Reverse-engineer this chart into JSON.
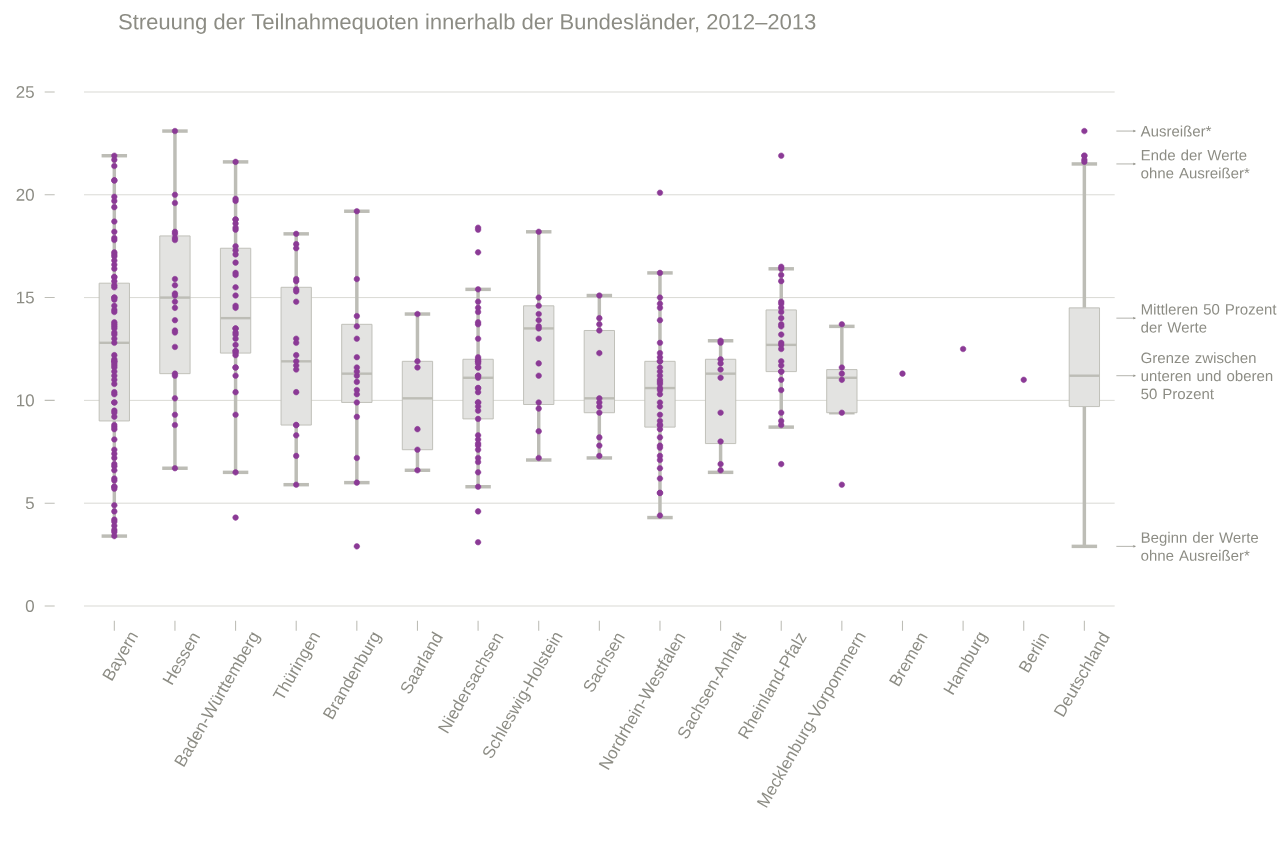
{
  "chart_data": {
    "type": "box",
    "title": "Streuung der Teilnahmequoten innerhalb der Bundesländer, 2012–2013",
    "categories": [
      "Bayern",
      "Hessen",
      "Baden-Württemberg",
      "Thüringen",
      "Brandenburg",
      "Saarland",
      "Niedersachsen",
      "Schleswig-Holstein",
      "Sachsen",
      "Nordrhein-Westfalen",
      "Sachsen-Anhalt",
      "Rheinland-Pfalz",
      "Mecklenburg-Vorpommern",
      "Bremen",
      "Hamburg",
      "Berlin",
      "Deutschland"
    ],
    "color": "#e3e3e1",
    "boxes": [
      {
        "low": 3.4,
        "q1": 9.0,
        "median": 12.8,
        "q3": 15.7,
        "high": 21.9
      },
      {
        "low": 6.7,
        "q1": 11.3,
        "median": 15.0,
        "q3": 18.0,
        "high": 23.1
      },
      {
        "low": 6.5,
        "q1": 12.3,
        "median": 14.0,
        "q3": 17.4,
        "high": 21.6
      },
      {
        "low": 5.9,
        "q1": 8.8,
        "median": 11.9,
        "q3": 15.5,
        "high": 18.1
      },
      {
        "low": 6.0,
        "q1": 9.9,
        "median": 11.3,
        "q3": 13.7,
        "high": 19.2
      },
      {
        "low": 6.6,
        "q1": 7.6,
        "median": 10.1,
        "q3": 11.9,
        "high": 14.2
      },
      {
        "low": 5.8,
        "q1": 9.1,
        "median": 11.1,
        "q3": 12.0,
        "high": 15.4
      },
      {
        "low": 7.1,
        "q1": 9.8,
        "median": 13.5,
        "q3": 14.6,
        "high": 18.2
      },
      {
        "low": 7.2,
        "q1": 9.4,
        "median": 10.1,
        "q3": 13.4,
        "high": 15.1
      },
      {
        "low": 4.3,
        "q1": 8.7,
        "median": 10.6,
        "q3": 11.9,
        "high": 16.2
      },
      {
        "low": 6.5,
        "q1": 7.9,
        "median": 11.3,
        "q3": 12.0,
        "high": 12.9
      },
      {
        "low": 8.7,
        "q1": 11.4,
        "median": 12.7,
        "q3": 14.4,
        "high": 16.4
      },
      {
        "low": 9.4,
        "q1": 9.4,
        "median": 11.1,
        "q3": 11.5,
        "high": 13.6
      },
      null,
      null,
      null,
      {
        "low": 2.9,
        "q1": 9.7,
        "median": 11.2,
        "q3": 14.5,
        "high": 21.5
      }
    ],
    "series": [
      {
        "type": "scatter",
        "color": "#8b3a96",
        "x": [
          "Bayern",
          "Bayern",
          "Bayern",
          "Bayern",
          "Bayern",
          "Bayern",
          "Bayern",
          "Bayern",
          "Bayern",
          "Bayern",
          "Bayern",
          "Bayern",
          "Bayern",
          "Bayern",
          "Bayern",
          "Bayern",
          "Bayern",
          "Bayern",
          "Bayern",
          "Bayern",
          "Bayern",
          "Bayern",
          "Bayern",
          "Bayern",
          "Bayern",
          "Bayern",
          "Bayern",
          "Bayern",
          "Bayern",
          "Bayern",
          "Bayern",
          "Bayern",
          "Bayern",
          "Bayern",
          "Bayern",
          "Bayern",
          "Bayern",
          "Bayern",
          "Bayern",
          "Bayern",
          "Bayern",
          "Bayern",
          "Bayern",
          "Bayern",
          "Bayern",
          "Bayern",
          "Bayern",
          "Bayern",
          "Bayern",
          "Bayern",
          "Bayern",
          "Bayern",
          "Bayern",
          "Bayern",
          "Bayern",
          "Bayern",
          "Bayern",
          "Bayern",
          "Bayern",
          "Bayern",
          "Bayern",
          "Bayern",
          "Bayern",
          "Bayern",
          "Bayern",
          "Bayern",
          "Bayern",
          "Bayern",
          "Bayern",
          "Bayern",
          "Bayern",
          "Bayern",
          "Bayern",
          "Bayern",
          "Bayern",
          "Bayern",
          "Bayern",
          "Bayern",
          "Hessen",
          "Hessen",
          "Hessen",
          "Hessen",
          "Hessen",
          "Hessen",
          "Hessen",
          "Hessen",
          "Hessen",
          "Hessen",
          "Hessen",
          "Hessen",
          "Hessen",
          "Hessen",
          "Hessen",
          "Hessen",
          "Hessen",
          "Hessen",
          "Hessen",
          "Hessen",
          "Hessen",
          "Hessen",
          "Hessen",
          "Baden-Württemberg",
          "Baden-Württemberg",
          "Baden-Württemberg",
          "Baden-Württemberg",
          "Baden-Württemberg",
          "Baden-Württemberg",
          "Baden-Württemberg",
          "Baden-Württemberg",
          "Baden-Württemberg",
          "Baden-Württemberg",
          "Baden-Württemberg",
          "Baden-Württemberg",
          "Baden-Württemberg",
          "Baden-Württemberg",
          "Baden-Württemberg",
          "Baden-Württemberg",
          "Baden-Württemberg",
          "Baden-Württemberg",
          "Baden-Württemberg",
          "Baden-Württemberg",
          "Baden-Württemberg",
          "Baden-Württemberg",
          "Baden-Württemberg",
          "Baden-Württemberg",
          "Baden-Württemberg",
          "Baden-Württemberg",
          "Baden-Württemberg",
          "Baden-Württemberg",
          "Baden-Württemberg",
          "Baden-Württemberg",
          "Baden-Württemberg",
          "Baden-Württemberg",
          "Baden-Württemberg",
          "Baden-Württemberg",
          "Baden-Württemberg",
          "Thüringen",
          "Thüringen",
          "Thüringen",
          "Thüringen",
          "Thüringen",
          "Thüringen",
          "Thüringen",
          "Thüringen",
          "Thüringen",
          "Thüringen",
          "Thüringen",
          "Thüringen",
          "Thüringen",
          "Thüringen",
          "Thüringen",
          "Thüringen",
          "Thüringen",
          "Thüringen",
          "Thüringen",
          "Thüringen",
          "Brandenburg",
          "Brandenburg",
          "Brandenburg",
          "Brandenburg",
          "Brandenburg",
          "Brandenburg",
          "Brandenburg",
          "Brandenburg",
          "Brandenburg",
          "Brandenburg",
          "Brandenburg",
          "Brandenburg",
          "Brandenburg",
          "Brandenburg",
          "Brandenburg",
          "Brandenburg",
          "Brandenburg",
          "Saarland",
          "Saarland",
          "Saarland",
          "Saarland",
          "Saarland",
          "Saarland",
          "Niedersachsen",
          "Niedersachsen",
          "Niedersachsen",
          "Niedersachsen",
          "Niedersachsen",
          "Niedersachsen",
          "Niedersachsen",
          "Niedersachsen",
          "Niedersachsen",
          "Niedersachsen",
          "Niedersachsen",
          "Niedersachsen",
          "Niedersachsen",
          "Niedersachsen",
          "Niedersachsen",
          "Niedersachsen",
          "Niedersachsen",
          "Niedersachsen",
          "Niedersachsen",
          "Niedersachsen",
          "Niedersachsen",
          "Niedersachsen",
          "Niedersachsen",
          "Niedersachsen",
          "Niedersachsen",
          "Niedersachsen",
          "Niedersachsen",
          "Niedersachsen",
          "Niedersachsen",
          "Niedersachsen",
          "Niedersachsen",
          "Niedersachsen",
          "Niedersachsen",
          "Niedersachsen",
          "Niedersachsen",
          "Niedersachsen",
          "Niedersachsen",
          "Niedersachsen",
          "Niedersachsen",
          "Schleswig-Holstein",
          "Schleswig-Holstein",
          "Schleswig-Holstein",
          "Schleswig-Holstein",
          "Schleswig-Holstein",
          "Schleswig-Holstein",
          "Schleswig-Holstein",
          "Schleswig-Holstein",
          "Schleswig-Holstein",
          "Schleswig-Holstein",
          "Schleswig-Holstein",
          "Schleswig-Holstein",
          "Schleswig-Holstein",
          "Schleswig-Holstein",
          "Sachsen",
          "Sachsen",
          "Sachsen",
          "Sachsen",
          "Sachsen",
          "Sachsen",
          "Sachsen",
          "Sachsen",
          "Sachsen",
          "Sachsen",
          "Sachsen",
          "Sachsen",
          "Nordrhein-Westfalen",
          "Nordrhein-Westfalen",
          "Nordrhein-Westfalen",
          "Nordrhein-Westfalen",
          "Nordrhein-Westfalen",
          "Nordrhein-Westfalen",
          "Nordrhein-Westfalen",
          "Nordrhein-Westfalen",
          "Nordrhein-Westfalen",
          "Nordrhein-Westfalen",
          "Nordrhein-Westfalen",
          "Nordrhein-Westfalen",
          "Nordrhein-Westfalen",
          "Nordrhein-Westfalen",
          "Nordrhein-Westfalen",
          "Nordrhein-Westfalen",
          "Nordrhein-Westfalen",
          "Nordrhein-Westfalen",
          "Nordrhein-Westfalen",
          "Nordrhein-Westfalen",
          "Nordrhein-Westfalen",
          "Nordrhein-Westfalen",
          "Nordrhein-Westfalen",
          "Nordrhein-Westfalen",
          "Nordrhein-Westfalen",
          "Nordrhein-Westfalen",
          "Nordrhein-Westfalen",
          "Nordrhein-Westfalen",
          "Nordrhein-Westfalen",
          "Nordrhein-Westfalen",
          "Nordrhein-Westfalen",
          "Nordrhein-Westfalen",
          "Nordrhein-Westfalen",
          "Nordrhein-Westfalen",
          "Nordrhein-Westfalen",
          "Nordrhein-Westfalen",
          "Nordrhein-Westfalen",
          "Sachsen-Anhalt",
          "Sachsen-Anhalt",
          "Sachsen-Anhalt",
          "Sachsen-Anhalt",
          "Sachsen-Anhalt",
          "Sachsen-Anhalt",
          "Sachsen-Anhalt",
          "Sachsen-Anhalt",
          "Sachsen-Anhalt",
          "Sachsen-Anhalt",
          "Rheinland-Pfalz",
          "Rheinland-Pfalz",
          "Rheinland-Pfalz",
          "Rheinland-Pfalz",
          "Rheinland-Pfalz",
          "Rheinland-Pfalz",
          "Rheinland-Pfalz",
          "Rheinland-Pfalz",
          "Rheinland-Pfalz",
          "Rheinland-Pfalz",
          "Rheinland-Pfalz",
          "Rheinland-Pfalz",
          "Rheinland-Pfalz",
          "Rheinland-Pfalz",
          "Rheinland-Pfalz",
          "Rheinland-Pfalz",
          "Rheinland-Pfalz",
          "Rheinland-Pfalz",
          "Rheinland-Pfalz",
          "Rheinland-Pfalz",
          "Rheinland-Pfalz",
          "Rheinland-Pfalz",
          "Rheinland-Pfalz",
          "Rheinland-Pfalz",
          "Rheinland-Pfalz",
          "Rheinland-Pfalz",
          "Mecklenburg-Vorpommern",
          "Mecklenburg-Vorpommern",
          "Mecklenburg-Vorpommern",
          "Mecklenburg-Vorpommern",
          "Mecklenburg-Vorpommern",
          "Mecklenburg-Vorpommern",
          "Bremen",
          "Hamburg",
          "Berlin",
          "Deutschland",
          "Deutschland",
          "Deutschland",
          "Deutschland",
          "Deutschland"
        ],
        "values": [
          21.9,
          21.7,
          21.4,
          20.7,
          20.7,
          19.9,
          19.7,
          19.4,
          18.7,
          18.2,
          17.9,
          17.8,
          17.2,
          17.1,
          17.0,
          16.8,
          16.6,
          16.4,
          16.0,
          16.0,
          15.8,
          15.6,
          15.5,
          15.0,
          15.0,
          14.9,
          14.6,
          14.4,
          14.3,
          13.8,
          13.7,
          13.6,
          13.5,
          13.3,
          13.2,
          13.0,
          12.8,
          12.2,
          12.0,
          11.9,
          11.9,
          11.8,
          11.7,
          11.6,
          11.4,
          11.2,
          11.0,
          10.8,
          10.4,
          10.3,
          9.9,
          9.9,
          9.5,
          9.4,
          9.2,
          8.8,
          8.7,
          8.6,
          8.1,
          7.6,
          7.4,
          7.2,
          6.9,
          6.8,
          6.6,
          6.2,
          6.1,
          5.8,
          5.8,
          5.7,
          4.9,
          4.6,
          4.2,
          4.1,
          3.9,
          3.7,
          3.6,
          3.4,
          23.1,
          20.0,
          19.6,
          18.2,
          18.1,
          17.9,
          17.8,
          15.9,
          15.6,
          15.2,
          15.1,
          14.8,
          14.5,
          13.9,
          13.4,
          13.3,
          12.6,
          11.3,
          11.2,
          10.1,
          9.3,
          8.8,
          6.7,
          21.6,
          19.8,
          19.7,
          18.8,
          18.8,
          18.6,
          18.4,
          18.3,
          17.5,
          17.3,
          17.1,
          16.7,
          16.2,
          16.1,
          15.5,
          15.1,
          14.6,
          14.5,
          13.5,
          13.5,
          13.3,
          13.2,
          13.0,
          12.7,
          12.4,
          12.4,
          12.3,
          12.2,
          11.6,
          11.6,
          11.2,
          10.4,
          9.3,
          6.5,
          4.3,
          18.1,
          17.6,
          17.4,
          15.9,
          15.8,
          15.4,
          15.3,
          14.8,
          13.0,
          12.8,
          12.2,
          11.9,
          11.7,
          11.5,
          10.4,
          8.8,
          8.8,
          8.3,
          7.3,
          5.9,
          19.2,
          15.9,
          14.1,
          13.6,
          13.0,
          12.1,
          11.6,
          11.4,
          11.2,
          10.9,
          10.5,
          10.3,
          9.9,
          9.2,
          7.2,
          6.0,
          2.9,
          14.2,
          11.9,
          11.6,
          8.6,
          7.6,
          6.6,
          18.4,
          18.3,
          17.2,
          15.4,
          14.8,
          14.5,
          14.3,
          13.8,
          13.7,
          13.0,
          12.1,
          12.0,
          11.9,
          11.9,
          11.8,
          11.6,
          11.6,
          11.2,
          11.2,
          11.1,
          10.6,
          10.6,
          10.4,
          9.9,
          9.9,
          9.7,
          9.5,
          9.1,
          8.3,
          8.1,
          7.9,
          7.8,
          7.6,
          7.2,
          7.0,
          6.5,
          5.8,
          4.6,
          3.1,
          18.2,
          15.0,
          14.6,
          14.2,
          13.9,
          13.6,
          13.5,
          13.0,
          11.8,
          11.2,
          9.9,
          9.6,
          8.5,
          7.2,
          15.1,
          14.0,
          13.7,
          13.4,
          12.3,
          10.1,
          9.9,
          9.7,
          9.4,
          8.2,
          7.8,
          7.3,
          20.1,
          16.2,
          15.0,
          14.7,
          14.5,
          13.9,
          12.8,
          12.3,
          12.1,
          11.9,
          11.9,
          11.6,
          11.4,
          11.2,
          11.0,
          10.9,
          10.8,
          10.6,
          10.5,
          10.3,
          9.9,
          9.7,
          9.3,
          9.0,
          8.8,
          8.8,
          8.6,
          8.2,
          7.8,
          7.7,
          7.3,
          7.1,
          6.7,
          6.2,
          5.5,
          5.5,
          4.4,
          12.9,
          12.8,
          12.0,
          11.8,
          11.5,
          11.1,
          9.4,
          8.0,
          6.9,
          6.6,
          21.9,
          16.5,
          16.4,
          16.1,
          15.8,
          14.8,
          14.7,
          14.5,
          14.3,
          14.0,
          13.7,
          13.6,
          13.2,
          12.8,
          12.7,
          12.5,
          11.9,
          11.7,
          11.4,
          11.4,
          11.0,
          10.5,
          9.4,
          9.0,
          8.8,
          6.9,
          13.7,
          11.6,
          11.3,
          11.0,
          9.4,
          5.9,
          11.3,
          12.5,
          11.0,
          23.1,
          21.9,
          21.9,
          21.7,
          21.6
        ]
      }
    ],
    "annotations": [
      "Ausreißer*",
      "Ende der Werte ohne Ausreißer*",
      "Mittleren 50 Prozent der Werte",
      "Grenze zwischen unteren und oberen 50 Prozent",
      "Beginn der Werte ohne Ausreißer*"
    ],
    "ylim": [
      0,
      25
    ],
    "yticks": [
      0,
      5,
      10,
      15,
      20,
      25
    ],
    "grid": "y",
    "marker": "circle"
  }
}
